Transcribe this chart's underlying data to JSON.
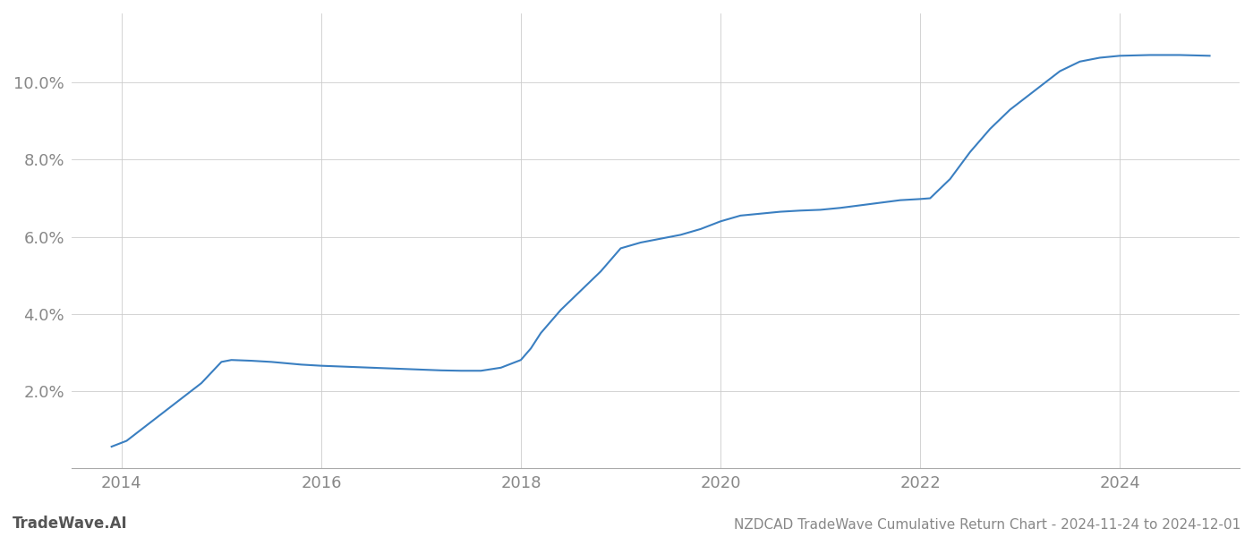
{
  "title": "NZDCAD TradeWave Cumulative Return Chart - 2024-11-24 to 2024-12-01",
  "watermark": "TradeWave.AI",
  "line_color": "#3a7fc1",
  "line_width": 1.5,
  "background_color": "#ffffff",
  "grid_color": "#cccccc",
  "x_values": [
    2013.9,
    2014.05,
    2014.2,
    2014.4,
    2014.6,
    2014.8,
    2015.0,
    2015.1,
    2015.3,
    2015.5,
    2015.8,
    2016.0,
    2016.2,
    2016.5,
    2016.8,
    2017.0,
    2017.1,
    2017.2,
    2017.4,
    2017.6,
    2017.8,
    2018.0,
    2018.1,
    2018.2,
    2018.4,
    2018.6,
    2018.8,
    2019.0,
    2019.2,
    2019.4,
    2019.6,
    2019.8,
    2020.0,
    2020.2,
    2020.4,
    2020.6,
    2020.8,
    2021.0,
    2021.2,
    2021.5,
    2021.8,
    2022.0,
    2022.1,
    2022.3,
    2022.5,
    2022.7,
    2022.9,
    2023.0,
    2023.2,
    2023.4,
    2023.6,
    2023.8,
    2024.0,
    2024.3,
    2024.6,
    2024.9
  ],
  "y_values": [
    0.55,
    0.7,
    1.0,
    1.4,
    1.8,
    2.2,
    2.75,
    2.8,
    2.78,
    2.75,
    2.68,
    2.65,
    2.63,
    2.6,
    2.57,
    2.55,
    2.54,
    2.53,
    2.52,
    2.52,
    2.6,
    2.8,
    3.1,
    3.5,
    4.1,
    4.6,
    5.1,
    5.7,
    5.85,
    5.95,
    6.05,
    6.2,
    6.4,
    6.55,
    6.6,
    6.65,
    6.68,
    6.7,
    6.75,
    6.85,
    6.95,
    6.98,
    7.0,
    7.5,
    8.2,
    8.8,
    9.3,
    9.5,
    9.9,
    10.3,
    10.55,
    10.65,
    10.7,
    10.72,
    10.72,
    10.7
  ],
  "xlim": [
    2013.5,
    2025.2
  ],
  "ylim": [
    0.0,
    11.8
  ],
  "yticks": [
    2.0,
    4.0,
    6.0,
    8.0,
    10.0
  ],
  "xticks": [
    2014,
    2016,
    2018,
    2020,
    2022,
    2024
  ],
  "tick_label_color": "#888888",
  "tick_fontsize": 13,
  "footer_fontsize": 11,
  "watermark_fontsize": 12
}
